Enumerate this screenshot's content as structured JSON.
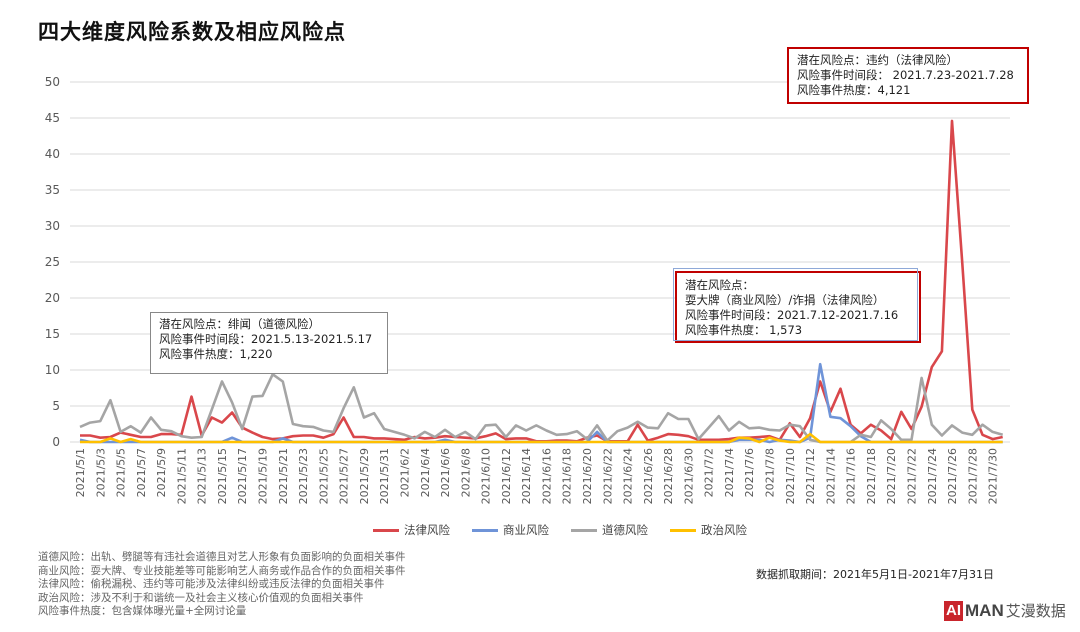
{
  "title": "四大维度风险系数及相应风险点",
  "chart_data": {
    "type": "line",
    "title": "四大维度风险系数及相应风险点",
    "ylim": [
      0,
      50
    ],
    "yticks": [
      0,
      5,
      10,
      15,
      20,
      25,
      30,
      35,
      40,
      45,
      50
    ],
    "grid": true,
    "legend_position": "bottom",
    "categories": [
      "2021/5/1",
      "2021/5/2",
      "2021/5/3",
      "2021/5/4",
      "2021/5/5",
      "2021/5/6",
      "2021/5/7",
      "2021/5/8",
      "2021/5/9",
      "2021/5/10",
      "2021/5/11",
      "2021/5/12",
      "2021/5/13",
      "2021/5/14",
      "2021/5/15",
      "2021/5/16",
      "2021/5/17",
      "2021/5/18",
      "2021/5/19",
      "2021/5/20",
      "2021/5/21",
      "2021/5/22",
      "2021/5/23",
      "2021/5/24",
      "2021/5/25",
      "2021/5/26",
      "2021/5/27",
      "2021/5/28",
      "2021/5/29",
      "2021/5/30",
      "2021/5/31",
      "2021/6/1",
      "2021/6/2",
      "2021/6/3",
      "2021/6/4",
      "2021/6/5",
      "2021/6/6",
      "2021/6/7",
      "2021/6/8",
      "2021/6/9",
      "2021/6/10",
      "2021/6/11",
      "2021/6/12",
      "2021/6/13",
      "2021/6/14",
      "2021/6/15",
      "2021/6/16",
      "2021/6/17",
      "2021/6/18",
      "2021/6/19",
      "2021/6/20",
      "2021/6/21",
      "2021/6/22",
      "2021/6/23",
      "2021/6/24",
      "2021/6/25",
      "2021/6/26",
      "2021/6/27",
      "2021/6/28",
      "2021/6/29",
      "2021/6/30",
      "2021/7/1",
      "2021/7/2",
      "2021/7/3",
      "2021/7/4",
      "2021/7/5",
      "2021/7/6",
      "2021/7/7",
      "2021/7/8",
      "2021/7/9",
      "2021/7/10",
      "2021/7/11",
      "2021/7/12",
      "2021/7/13",
      "2021/7/14",
      "2021/7/15",
      "2021/7/16",
      "2021/7/17",
      "2021/7/18",
      "2021/7/19",
      "2021/7/20",
      "2021/7/21",
      "2021/7/22",
      "2021/7/23",
      "2021/7/24",
      "2021/7/25",
      "2021/7/26",
      "2021/7/27",
      "2021/7/28",
      "2021/7/29",
      "2021/7/30",
      "2021/7/31"
    ],
    "series": [
      {
        "name": "法律风险",
        "color": "#d9474b",
        "values": [
          0.9,
          0.9,
          0.6,
          0.7,
          1.3,
          1.0,
          0.7,
          0.7,
          1.1,
          1.1,
          1.0,
          6.3,
          0.9,
          3.4,
          2.7,
          4.1,
          2.0,
          1.3,
          0.7,
          0.4,
          0.5,
          0.8,
          0.9,
          0.9,
          0.6,
          1.1,
          3.4,
          0.7,
          0.7,
          0.5,
          0.5,
          0.4,
          0.3,
          0.7,
          0.5,
          0.6,
          0.8,
          0.7,
          0.6,
          0.5,
          0.8,
          1.2,
          0.4,
          0.5,
          0.5,
          0.1,
          0.1,
          0.2,
          0.2,
          0.1,
          0.6,
          0.9,
          0.1,
          0.1,
          0.1,
          2.4,
          0.2,
          0.6,
          1.1,
          1.0,
          0.8,
          0.3,
          0.3,
          0.3,
          0.4,
          0.6,
          0.6,
          0.7,
          0.8,
          0.3,
          2.6,
          0.7,
          3.3,
          8.4,
          4.2,
          7.4,
          2.4,
          1.2,
          2.4,
          1.6,
          0.4,
          4.2,
          1.8,
          4.9,
          10.4,
          12.6,
          44.6,
          25.0,
          4.5,
          1.0,
          0.4,
          0.7
        ]
      },
      {
        "name": "商业风险",
        "color": "#6f94d8",
        "values": [
          0.3,
          0,
          0,
          0,
          0,
          0,
          0,
          0,
          0,
          0,
          0,
          0,
          0,
          0,
          0,
          0.6,
          0,
          0,
          0,
          0,
          0.5,
          0,
          0,
          0,
          0,
          0,
          0,
          0,
          0,
          0,
          0,
          0,
          0,
          0,
          0,
          0,
          0.3,
          0,
          0,
          0,
          0,
          0,
          0,
          0,
          0,
          0,
          0,
          0,
          0,
          0,
          0,
          1.4,
          0,
          0,
          0,
          0,
          0,
          0,
          0,
          0,
          0,
          0,
          0,
          0,
          0,
          0.3,
          0.3,
          0.3,
          0,
          0.3,
          0.2,
          0,
          0.6,
          10.8,
          3.5,
          3.3,
          2.2,
          0.8,
          0,
          0,
          0,
          0,
          0,
          0,
          0,
          0,
          0,
          0,
          0,
          0,
          0,
          0
        ]
      },
      {
        "name": "道德风险",
        "color": "#a5a5a5",
        "values": [
          2.1,
          2.7,
          2.9,
          5.8,
          1.4,
          2.2,
          1.3,
          3.4,
          1.7,
          1.5,
          0.8,
          0.6,
          0.7,
          4.5,
          8.4,
          5.5,
          1.8,
          6.3,
          6.4,
          9.4,
          8.4,
          2.5,
          2.2,
          2.1,
          1.6,
          1.4,
          4.7,
          7.6,
          3.4,
          4.0,
          1.8,
          1.4,
          1.0,
          0.5,
          1.4,
          0.7,
          1.7,
          0.7,
          1.4,
          0.4,
          2.3,
          2.4,
          0.7,
          2.3,
          1.6,
          2.3,
          1.6,
          1.0,
          1.1,
          1.5,
          0.4,
          2.3,
          0.2,
          1.5,
          2.0,
          2.8,
          2.0,
          1.9,
          4.0,
          3.2,
          3.2,
          0.4,
          2.0,
          3.6,
          1.6,
          2.8,
          1.9,
          2.0,
          1.7,
          1.6,
          2.4,
          2.2,
          0.3,
          0,
          0,
          0,
          0,
          1.0,
          0.7,
          3.0,
          1.8,
          0.3,
          0.3,
          8.9,
          2.4,
          0.9,
          2.3,
          1.3,
          1.0,
          2.4,
          1.4,
          1.0
        ]
      },
      {
        "name": "政治风险",
        "color": "#ffc000",
        "values": [
          0,
          0,
          0,
          0.5,
          0,
          0.4,
          0,
          0,
          0,
          0,
          0,
          0,
          0,
          0,
          0,
          0,
          0,
          0,
          0,
          0,
          0,
          0,
          0,
          0,
          0,
          0,
          0,
          0,
          0,
          0,
          0,
          0,
          0,
          0,
          0,
          0,
          0,
          0,
          0,
          0,
          0,
          0,
          0,
          0,
          0,
          0,
          0,
          0,
          0,
          0,
          0,
          0,
          0,
          0,
          0,
          0,
          0,
          0,
          0,
          0,
          0,
          0,
          0,
          0,
          0,
          0.6,
          0.5,
          0,
          0.6,
          0.2,
          0,
          0,
          1.1,
          0,
          0,
          0,
          0,
          0,
          0,
          0,
          0,
          0,
          0,
          0,
          0,
          0,
          0,
          0,
          0,
          0,
          0,
          0
        ]
      }
    ]
  },
  "annotations": [
    {
      "lines": [
        "潜在风险点：绯闻（道德风险）",
        "风险事件时间段：2021.5.13-2021.5.17",
        "风险事件热度：1,220"
      ]
    },
    {
      "lines": [
        "潜在风险点：",
        "耍大牌（商业风险）/诈捐（法律风险）",
        "风险事件时间段：2021.7.12-2021.7.16",
        "风险事件热度： 1,573"
      ]
    },
    {
      "lines": [
        "潜在风险点：违约（法律风险）",
        "风险事件时间段： 2021.7.23-2021.7.28",
        "风险事件热度：4,121"
      ]
    }
  ],
  "notes": [
    "道德风险：出轨、劈腿等有违社会道德且对艺人形象有负面影响的负面相关事件",
    "商业风险：耍大牌、专业技能差等可能影响艺人商务或作品合作的负面相关事件",
    "法律风险：偷税漏税、违约等可能涉及法律纠纷或违反法律的负面相关事件",
    "政治风险：涉及不利于和谐统一及社会主义核心价值观的负面相关事件",
    "风险事件热度：包含媒体曝光量+全网讨论量"
  ],
  "period": "数据抓取期间：2021年5月1日-2021年7月31日",
  "logo": {
    "ai": "AI",
    "man": "MAN",
    "cn": "艾漫数据"
  }
}
